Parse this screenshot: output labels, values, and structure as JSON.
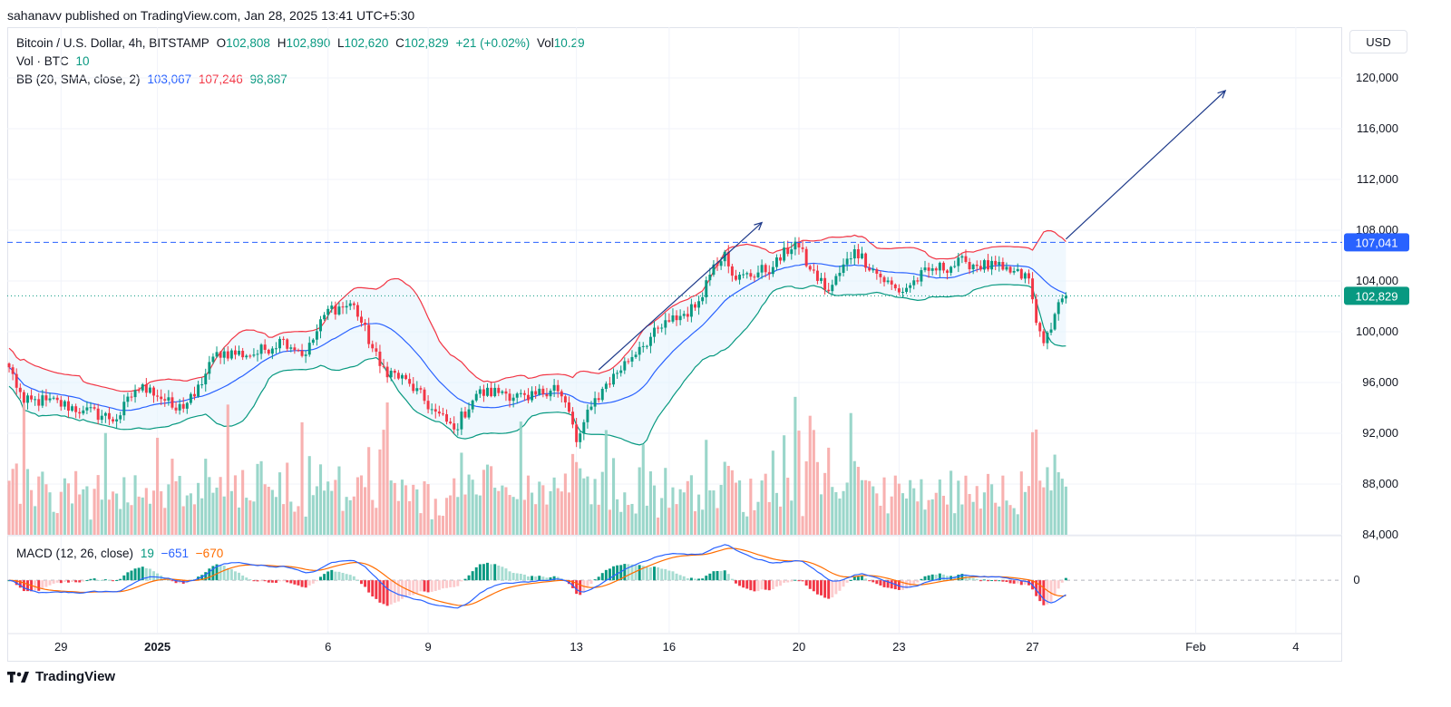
{
  "header": {
    "published": "sahanavv published on TradingView.com, Jan 28, 2025 13:41 UTC+5:30"
  },
  "legend": {
    "symbol": "Bitcoin / U.S. Dollar, 4h, BITSTAMP",
    "o_label": "O",
    "o": "102,808",
    "h_label": "H",
    "h": "102,890",
    "l_label": "L",
    "l": "102,620",
    "c_label": "C",
    "c": "102,829",
    "change": "+21 (+0.02%)",
    "vol_label": "Vol",
    "vol": "10.29",
    "vol_ind": "Vol · BTC",
    "vol_ind_value": "10",
    "bb_name": "BB (20, SMA, close, 2)",
    "bb_basis": "103,067",
    "bb_upper": "107,246",
    "bb_lower": "98,887",
    "macd_name": "MACD (12, 26, close)",
    "macd_hist": "19",
    "macd_line": "−651",
    "macd_signal": "−670"
  },
  "currency_button": "USD",
  "footer": {
    "brand": "TradingView"
  },
  "colors": {
    "up": "#089981",
    "down": "#f23645",
    "basis": "#2962ff",
    "band_fill": "#e3f2fd",
    "signal": "#ff6d00"
  },
  "chart_data": {
    "type": "candlestick",
    "instrument": "Bitcoin / U.S. Dollar",
    "interval": "4h",
    "exchange": "BITSTAMP",
    "currency": "USD",
    "price_axis": {
      "ylim": [
        84000,
        124000
      ],
      "ticks": [
        84000,
        88000,
        92000,
        96000,
        100000,
        104000,
        108000,
        112000,
        116000,
        120000
      ],
      "tick_labels": [
        "84,000",
        "88,000",
        "92,000",
        "96,000",
        "100,000",
        "104,000",
        "108,000",
        "112,000",
        "116,000",
        "120,000"
      ]
    },
    "x_axis": {
      "ticks": [
        {
          "label": "29",
          "bar": 14
        },
        {
          "label": "2025",
          "bar": 40
        },
        {
          "label": "6",
          "bar": 86
        },
        {
          "label": "9",
          "bar": 113
        },
        {
          "label": "13",
          "bar": 153
        },
        {
          "label": "16",
          "bar": 178
        },
        {
          "label": "20",
          "bar": 213
        },
        {
          "label": "23",
          "bar": 240
        },
        {
          "label": "27",
          "bar": 276
        },
        {
          "label": "Feb",
          "bar": 320
        },
        {
          "label": "4",
          "bar": 347
        }
      ],
      "bar_count": 286,
      "total_slots": 360
    },
    "price_labels": [
      {
        "value": 107041,
        "text": "107,041",
        "color": "#2962ff",
        "style": "dashed"
      },
      {
        "value": 102829,
        "text": "102,829",
        "color": "#089981",
        "style": "dotted"
      }
    ],
    "close_anchors": [
      [
        0,
        97200
      ],
      [
        4,
        94400
      ],
      [
        10,
        94600
      ],
      [
        20,
        93800
      ],
      [
        29,
        93100
      ],
      [
        34,
        95400
      ],
      [
        38,
        95600
      ],
      [
        45,
        93800
      ],
      [
        50,
        94900
      ],
      [
        56,
        98400
      ],
      [
        66,
        98200
      ],
      [
        74,
        99400
      ],
      [
        80,
        98200
      ],
      [
        86,
        101800
      ],
      [
        93,
        102100
      ],
      [
        100,
        97300
      ],
      [
        108,
        95900
      ],
      [
        114,
        93900
      ],
      [
        120,
        92300
      ],
      [
        126,
        95100
      ],
      [
        133,
        95300
      ],
      [
        140,
        94600
      ],
      [
        147,
        95800
      ],
      [
        151,
        93700
      ],
      [
        153,
        91300
      ],
      [
        157,
        94100
      ],
      [
        160,
        95500
      ],
      [
        170,
        98800
      ],
      [
        178,
        100800
      ],
      [
        185,
        101900
      ],
      [
        190,
        105300
      ],
      [
        193,
        106300
      ],
      [
        196,
        104100
      ],
      [
        206,
        105100
      ],
      [
        212,
        107100
      ],
      [
        216,
        104900
      ],
      [
        221,
        103200
      ],
      [
        228,
        106500
      ],
      [
        235,
        104300
      ],
      [
        240,
        103100
      ],
      [
        248,
        104800
      ],
      [
        258,
        105500
      ],
      [
        268,
        104900
      ],
      [
        275,
        104200
      ],
      [
        277,
        100700
      ],
      [
        279,
        99100
      ],
      [
        282,
        101400
      ],
      [
        285,
        102829
      ]
    ],
    "volume_axis": {
      "ylim": [
        0,
        11
      ]
    },
    "macd": {
      "fast": 12,
      "slow": 26,
      "source": "close",
      "axis": {
        "ticks": [
          0
        ],
        "tick_labels": [
          "0"
        ],
        "ylim": [
          -3000,
          2500
        ]
      },
      "current": {
        "histogram": 19,
        "macd": -651,
        "signal": -670
      }
    },
    "drawings": [
      {
        "type": "arrow",
        "from": {
          "bar": 159,
          "price": 97000
        },
        "to": {
          "bar": 203,
          "price": 108600
        }
      },
      {
        "type": "arrow",
        "from": {
          "bar": 285,
          "price": 107300
        },
        "to": {
          "bar": 328,
          "price": 119000
        }
      }
    ],
    "grid": true
  }
}
